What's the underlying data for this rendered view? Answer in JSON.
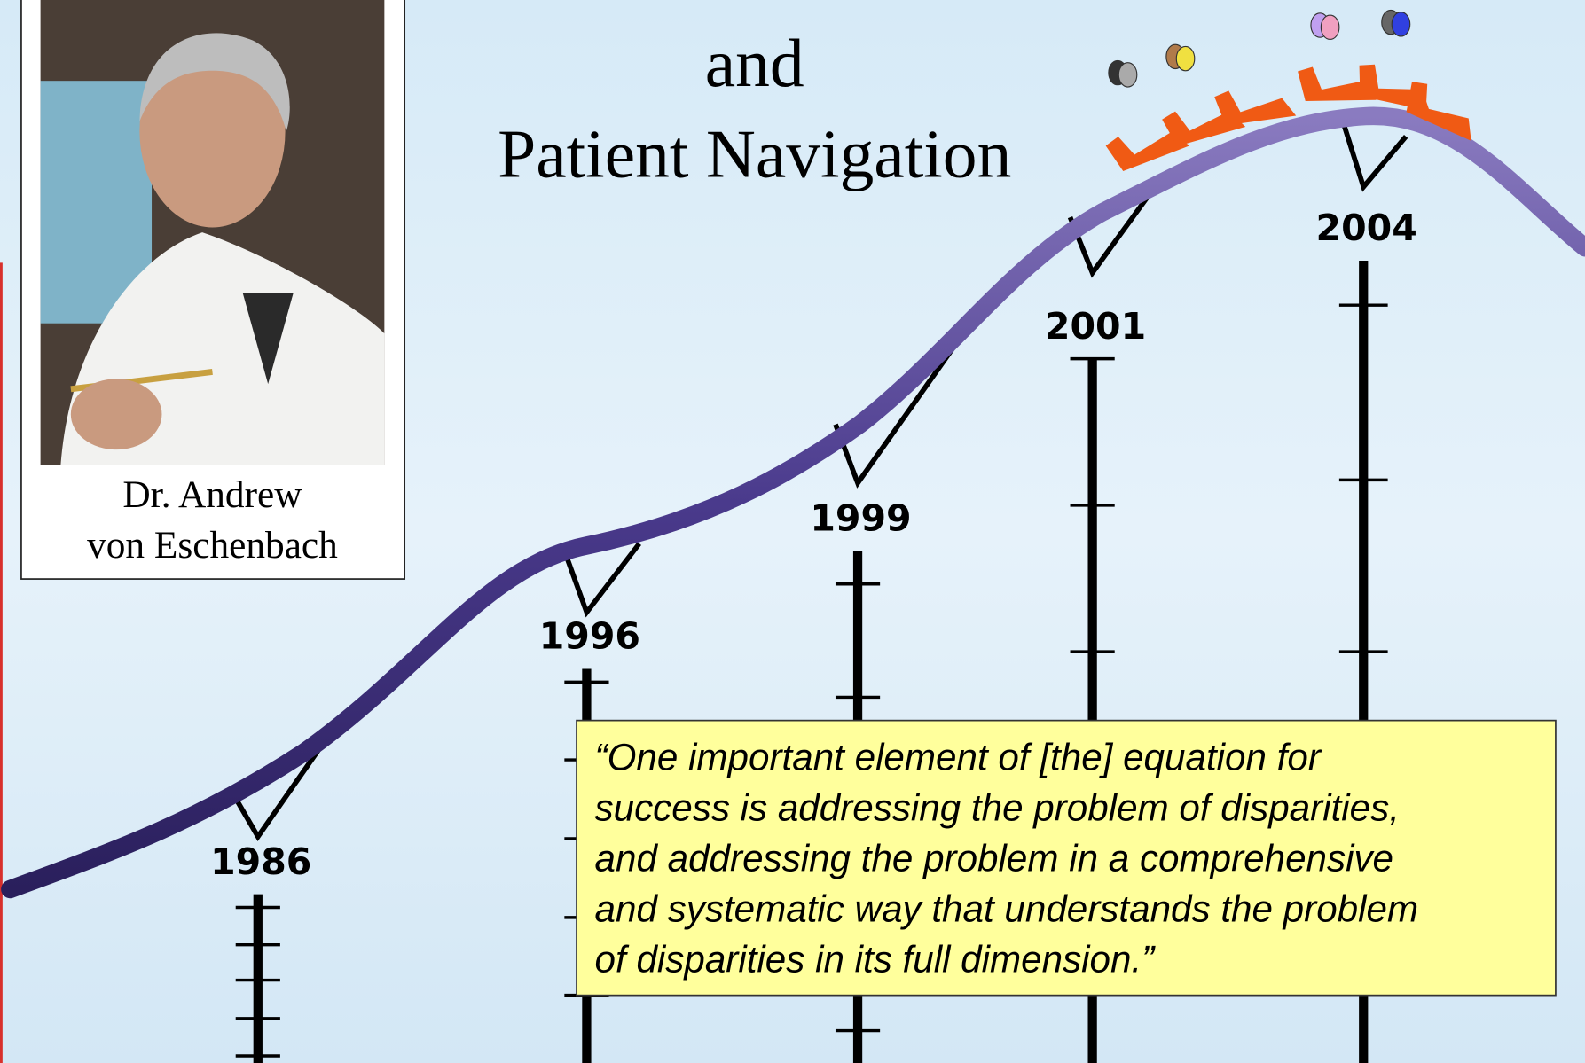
{
  "title": {
    "lines": [
      "and",
      "Patient Navigation"
    ]
  },
  "portrait": {
    "caption": [
      "Dr. Andrew",
      "von Eschenbach"
    ]
  },
  "timeline": {
    "years": [
      "1986",
      "1996",
      "1999",
      "2001",
      "2004"
    ]
  },
  "quote": {
    "lines": [
      "“One important element of [the] equation for",
      "success is addressing the problem of disparities,",
      "and addressing the problem in a comprehensive",
      "and systematic way that understands the problem",
      "of disparities in its full dimension.”"
    ]
  }
}
